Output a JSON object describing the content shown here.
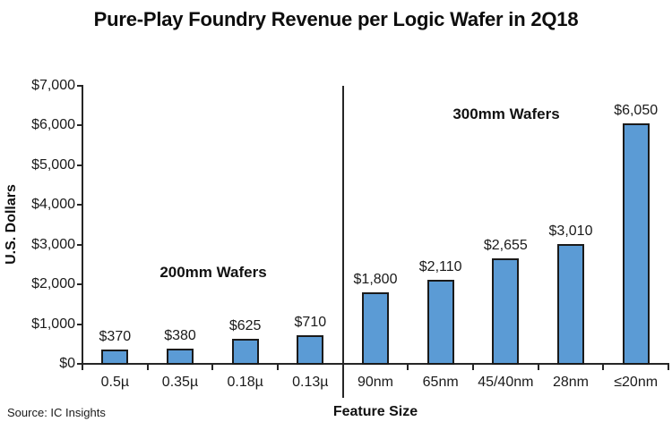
{
  "source_note": "Source: IC Insights",
  "chart_data": {
    "type": "bar",
    "title": "Pure-Play Foundry Revenue per Logic Wafer in 2Q18",
    "categories": [
      "0.5µ",
      "0.35µ",
      "0.18µ",
      "0.13µ",
      "90nm",
      "65nm",
      "45/40nm",
      "28nm",
      "≤20nm"
    ],
    "values": [
      370,
      380,
      625,
      710,
      1800,
      2110,
      2655,
      3010,
      6050
    ],
    "value_labels": [
      "$370",
      "$380",
      "$625",
      "$710",
      "$1,800",
      "$2,110",
      "$2,655",
      "$3,010",
      "$6,050"
    ],
    "groups": [
      {
        "label": "200mm Wafers",
        "first_category": "0.5µ",
        "last_category": "0.13µ"
      },
      {
        "label": "300mm Wafers",
        "first_category": "90nm",
        "last_category": "≤20nm"
      }
    ],
    "separator_after_index": 3,
    "xlabel": "Feature Size",
    "ylabel": "U.S. Dollars",
    "ylim": [
      0,
      7000
    ],
    "ytick_step": 1000,
    "ytick_labels": [
      "$0",
      "$1,000",
      "$2,000",
      "$3,000",
      "$4,000",
      "$5,000",
      "$6,000",
      "$7,000"
    ],
    "grid": false,
    "legend": "none",
    "bar_color": "#5B9BD5",
    "bar_border_color": "#1A1A1A",
    "axis_color": "#262626"
  }
}
